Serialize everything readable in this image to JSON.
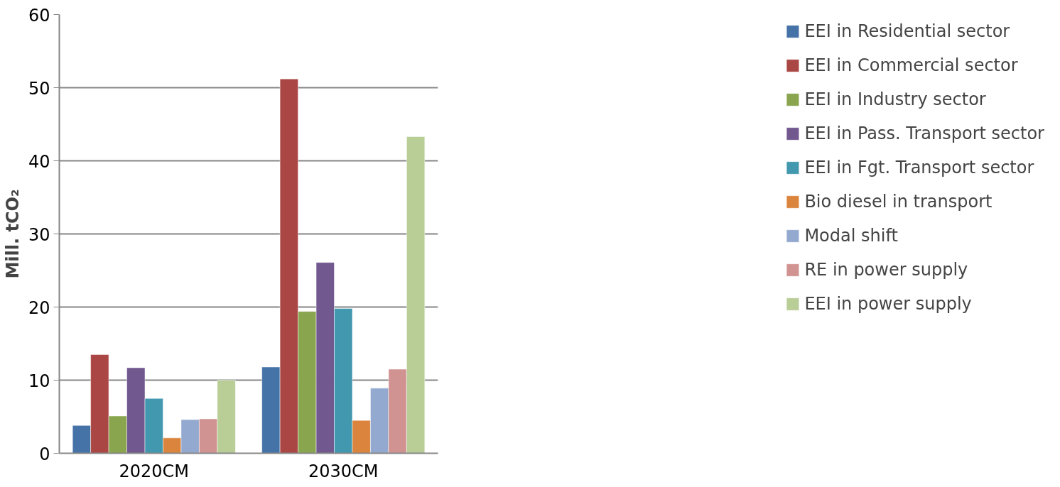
{
  "chart_data": {
    "type": "bar",
    "ylabel": "Mill. tCO₂",
    "categories": [
      "2020CM",
      "2030CM"
    ],
    "ylim": [
      0,
      60
    ],
    "yticks": [
      0,
      10,
      20,
      30,
      40,
      50,
      60
    ],
    "grid": "y",
    "legend": "right",
    "series": [
      {
        "name": "EEI in Residential sector",
        "color": "#4572a7",
        "values": [
          3.8,
          11.8
        ]
      },
      {
        "name": "EEI in Commercial sector",
        "color": "#aa4643",
        "values": [
          13.5,
          51.2
        ]
      },
      {
        "name": "EEI in Industry sector",
        "color": "#89a54e",
        "values": [
          5.1,
          19.4
        ]
      },
      {
        "name": "EEI in Pass. Transport sector",
        "color": "#71588f",
        "values": [
          11.7,
          26.1
        ]
      },
      {
        "name": "EEI in Fgt. Transport sector",
        "color": "#4198af",
        "values": [
          7.5,
          19.8
        ]
      },
      {
        "name": "Bio diesel in transport",
        "color": "#db843d",
        "values": [
          2.1,
          4.5
        ]
      },
      {
        "name": "Modal shift",
        "color": "#93a9cf",
        "values": [
          4.6,
          8.9
        ]
      },
      {
        "name": "RE in power supply",
        "color": "#d19392",
        "values": [
          4.7,
          11.5
        ]
      },
      {
        "name": "EEI in power supply",
        "color": "#b9cd96",
        "values": [
          10.0,
          43.3
        ]
      }
    ]
  }
}
